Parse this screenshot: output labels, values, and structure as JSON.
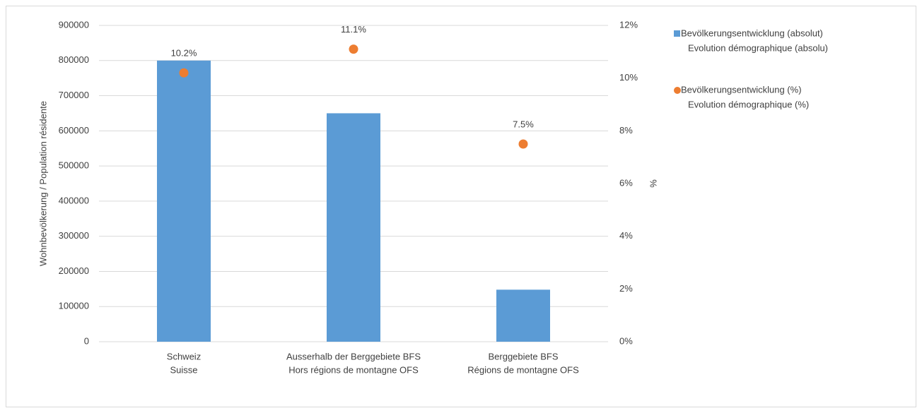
{
  "chart_data": {
    "type": "bar",
    "categories": [
      [
        "Schweiz",
        "Suisse"
      ],
      [
        "Ausserhalb der Berggebiete BFS",
        "Hors régions de montagne OFS"
      ],
      [
        "Berggebiete BFS",
        "Régions de montagne OFS"
      ]
    ],
    "series": [
      {
        "name": [
          "Bevölkerungsentwicklung (absolut)",
          "Evolution démographique (absolu)"
        ],
        "type": "bar",
        "color": "#5b9bd5",
        "values": [
          800000,
          650000,
          148000
        ]
      },
      {
        "name": [
          "Bevölkerungsentwicklung (%)",
          "Evolution démographique (%)"
        ],
        "type": "scatter",
        "axis": "y2",
        "color": "#ed7d31",
        "values": [
          10.2,
          11.1,
          7.5
        ],
        "value_labels": [
          "10.2%",
          "11.1%",
          "7.5%"
        ]
      }
    ],
    "y_label": "Wohnbevölkerung / Population résidente",
    "y2_label": "%",
    "ylim": [
      0,
      900000
    ],
    "yticks": [
      0,
      100000,
      200000,
      300000,
      400000,
      500000,
      600000,
      700000,
      800000,
      900000
    ],
    "y2lim": [
      0,
      12
    ],
    "y2ticks": [
      {
        "value": 0,
        "label": "0%"
      },
      {
        "value": 2,
        "label": "2%"
      },
      {
        "value": 4,
        "label": "4%"
      },
      {
        "value": 6,
        "label": "6%"
      },
      {
        "value": 8,
        "label": "8%"
      },
      {
        "value": 10,
        "label": "10%"
      },
      {
        "value": 12,
        "label": "12%"
      }
    ],
    "grid": true,
    "legend": "right"
  }
}
